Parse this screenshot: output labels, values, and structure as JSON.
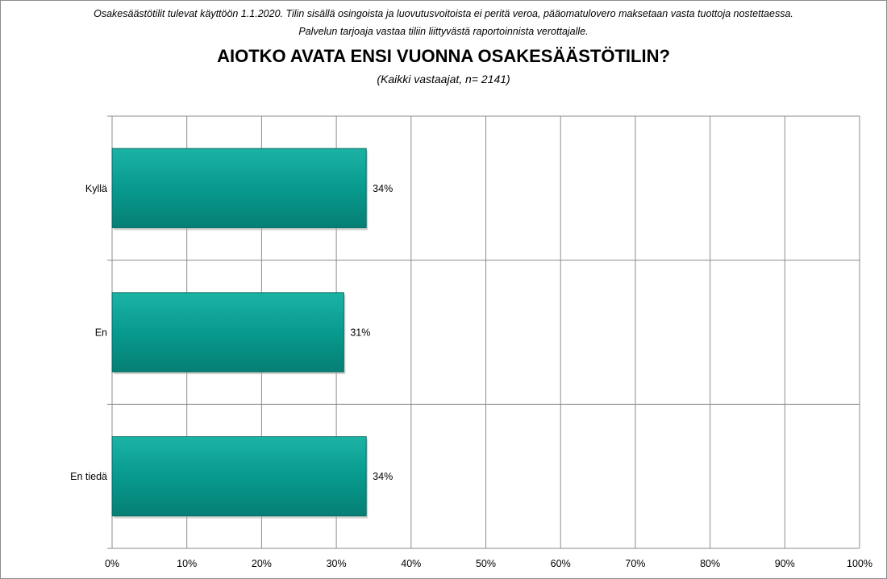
{
  "header": {
    "note_line1": "Osakesäästötilit tulevat käyttöön 1.1.2020. Tilin sisällä osingoista ja luovutusvoitoista  ei peritä veroa, pääomatulovero  maksetaan vasta tuottoja nostettaessa.",
    "note_line2": "Palvelun tarjoaja vastaa tiliin liittyvästä raportoinnista  verottajalle.",
    "title": "AIOTKO AVATA ENSI VUONNA OSAKESÄÄSTÖTILIN?",
    "subtitle": "(Kaikki vastaajat, n= 2141)"
  },
  "chart_data": {
    "type": "bar",
    "orientation": "horizontal",
    "categories": [
      "Kyllä",
      "En",
      "En tiedä"
    ],
    "values": [
      34,
      31,
      34
    ],
    "value_labels": [
      "34%",
      "31%",
      "34%"
    ],
    "xlim": [
      0,
      100
    ],
    "x_ticks": [
      "0%",
      "10%",
      "20%",
      "30%",
      "40%",
      "50%",
      "60%",
      "70%",
      "80%",
      "90%",
      "100%"
    ],
    "grid": true,
    "bar_color": "#089a8e"
  }
}
